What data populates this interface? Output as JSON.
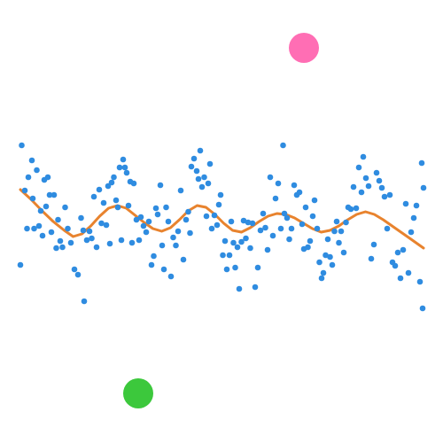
{
  "chart_data": {
    "type": "scatter",
    "title": "",
    "xlabel": "",
    "ylabel": "",
    "grid": false,
    "legend": "none",
    "xlim": [
      0,
      1
    ],
    "ylim": [
      0,
      1
    ],
    "series": [
      {
        "kind": "scatter",
        "color": "#2f8ce0",
        "points": [
          [
            0.046,
            0.402
          ],
          [
            0.049,
            0.672
          ],
          [
            0.056,
            0.57
          ],
          [
            0.061,
            0.484
          ],
          [
            0.064,
            0.6
          ],
          [
            0.072,
            0.638
          ],
          [
            0.074,
            0.552
          ],
          [
            0.077,
            0.484
          ],
          [
            0.083,
            0.616
          ],
          [
            0.088,
            0.49
          ],
          [
            0.092,
            0.524
          ],
          [
            0.096,
            0.468
          ],
          [
            0.1,
            0.594
          ],
          [
            0.104,
            0.534
          ],
          [
            0.108,
            0.6
          ],
          [
            0.112,
            0.56
          ],
          [
            0.116,
            0.476
          ],
          [
            0.122,
            0.56
          ],
          [
            0.127,
            0.44
          ],
          [
            0.131,
            0.504
          ],
          [
            0.136,
            0.456
          ],
          [
            0.141,
            0.442
          ],
          [
            0.147,
            0.532
          ],
          [
            0.153,
            0.484
          ],
          [
            0.16,
            0.452
          ],
          [
            0.168,
            0.392
          ],
          [
            0.176,
            0.38
          ],
          [
            0.183,
            0.508
          ],
          [
            0.188,
            0.48
          ],
          [
            0.19,
            0.32
          ],
          [
            0.196,
            0.458
          ],
          [
            0.202,
            0.478
          ],
          [
            0.207,
            0.462
          ],
          [
            0.212,
            0.556
          ],
          [
            0.218,
            0.442
          ],
          [
            0.224,
            0.572
          ],
          [
            0.229,
            0.496
          ],
          [
            0.234,
            0.542
          ],
          [
            0.24,
            0.492
          ],
          [
            0.244,
            0.58
          ],
          [
            0.248,
            0.45
          ],
          [
            0.252,
            0.588
          ],
          [
            0.257,
            0.6
          ],
          [
            0.262,
            0.548
          ],
          [
            0.266,
            0.532
          ],
          [
            0.27,
            0.622
          ],
          [
            0.274,
            0.458
          ],
          [
            0.278,
            0.64
          ],
          [
            0.282,
            0.622
          ],
          [
            0.286,
            0.61
          ],
          [
            0.29,
            0.536
          ],
          [
            0.294,
            0.59
          ],
          [
            0.298,
            0.452
          ],
          [
            0.302,
            0.586
          ],
          [
            0.308,
            0.504
          ],
          [
            0.314,
            0.458
          ],
          [
            0.318,
            0.51
          ],
          [
            0.324,
            0.49
          ],
          [
            0.33,
            0.476
          ],
          [
            0.336,
            0.5
          ],
          [
            0.342,
            0.402
          ],
          [
            0.347,
            0.422
          ],
          [
            0.352,
            0.53
          ],
          [
            0.356,
            0.516
          ],
          [
            0.362,
            0.582
          ],
          [
            0.366,
            0.446
          ],
          [
            0.37,
            0.392
          ],
          [
            0.375,
            0.532
          ],
          [
            0.38,
            0.5
          ],
          [
            0.386,
            0.376
          ],
          [
            0.391,
            0.464
          ],
          [
            0.397,
            0.446
          ],
          [
            0.402,
            0.478
          ],
          [
            0.408,
            0.57
          ],
          [
            0.414,
            0.414
          ],
          [
            0.42,
            0.504
          ],
          [
            0.425,
            0.522
          ],
          [
            0.429,
            0.474
          ],
          [
            0.432,
            0.624
          ],
          [
            0.438,
            0.642
          ],
          [
            0.444,
            0.614
          ],
          [
            0.448,
            0.596
          ],
          [
            0.452,
            0.66
          ],
          [
            0.456,
            0.578
          ],
          [
            0.461,
            0.6
          ],
          [
            0.466,
            0.512
          ],
          [
            0.47,
            0.586
          ],
          [
            0.474,
            0.63
          ],
          [
            0.478,
            0.484
          ],
          [
            0.484,
            0.514
          ],
          [
            0.49,
            0.492
          ],
          [
            0.494,
            0.538
          ],
          [
            0.498,
            0.56
          ],
          [
            0.503,
            0.424
          ],
          [
            0.508,
            0.456
          ],
          [
            0.512,
            0.392
          ],
          [
            0.518,
            0.424
          ],
          [
            0.522,
            0.5
          ],
          [
            0.527,
            0.452
          ],
          [
            0.531,
            0.396
          ],
          [
            0.536,
            0.442
          ],
          [
            0.54,
            0.348
          ],
          [
            0.545,
            0.454
          ],
          [
            0.55,
            0.502
          ],
          [
            0.555,
            0.462
          ],
          [
            0.56,
            0.498
          ],
          [
            0.565,
            0.44
          ],
          [
            0.57,
            0.496
          ],
          [
            0.576,
            0.352
          ],
          [
            0.582,
            0.396
          ],
          [
            0.588,
            0.48
          ],
          [
            0.594,
            0.518
          ],
          [
            0.599,
            0.486
          ],
          [
            0.604,
            0.436
          ],
          [
            0.61,
            0.6
          ],
          [
            0.616,
            0.468
          ],
          [
            0.622,
            0.552
          ],
          [
            0.628,
            0.586
          ],
          [
            0.634,
            0.484
          ],
          [
            0.639,
            0.672
          ],
          [
            0.642,
            0.518
          ],
          [
            0.648,
            0.508
          ],
          [
            0.653,
            0.46
          ],
          [
            0.658,
            0.484
          ],
          [
            0.664,
            0.582
          ],
          [
            0.67,
            0.56
          ],
          [
            0.676,
            0.566
          ],
          [
            0.682,
            0.494
          ],
          [
            0.686,
            0.438
          ],
          [
            0.69,
            0.532
          ],
          [
            0.695,
            0.442
          ],
          [
            0.7,
            0.456
          ],
          [
            0.706,
            0.512
          ],
          [
            0.71,
            0.548
          ],
          [
            0.716,
            0.484
          ],
          [
            0.721,
            0.408
          ],
          [
            0.726,
            0.372
          ],
          [
            0.73,
            0.384
          ],
          [
            0.735,
            0.424
          ],
          [
            0.74,
            0.46
          ],
          [
            0.745,
            0.42
          ],
          [
            0.75,
            0.402
          ],
          [
            0.755,
            0.478
          ],
          [
            0.76,
            0.5
          ],
          [
            0.765,
            0.452
          ],
          [
            0.77,
            0.478
          ],
          [
            0.776,
            0.43
          ],
          [
            0.781,
            0.498
          ],
          [
            0.786,
            0.532
          ],
          [
            0.792,
            0.528
          ],
          [
            0.798,
            0.578
          ],
          [
            0.804,
            0.53
          ],
          [
            0.81,
            0.622
          ],
          [
            0.816,
            0.566
          ],
          [
            0.82,
            0.646
          ],
          [
            0.826,
            0.598
          ],
          [
            0.832,
            0.58
          ],
          [
            0.838,
            0.416
          ],
          [
            0.844,
            0.448
          ],
          [
            0.85,
            0.61
          ],
          [
            0.856,
            0.592
          ],
          [
            0.862,
            0.576
          ],
          [
            0.868,
            0.556
          ],
          [
            0.874,
            0.484
          ],
          [
            0.88,
            0.56
          ],
          [
            0.886,
            0.408
          ],
          [
            0.892,
            0.4
          ],
          [
            0.898,
            0.43
          ],
          [
            0.904,
            0.372
          ],
          [
            0.91,
            0.436
          ],
          [
            0.916,
            0.54
          ],
          [
            0.922,
            0.384
          ],
          [
            0.928,
            0.476
          ],
          [
            0.934,
            0.508
          ],
          [
            0.94,
            0.536
          ],
          [
            0.948,
            0.364
          ],
          [
            0.952,
            0.632
          ],
          [
            0.954,
            0.304
          ],
          [
            0.956,
            0.576
          ]
        ]
      },
      {
        "kind": "line",
        "color": "#e8832e",
        "points": [
          [
            0.046,
            0.572
          ],
          [
            0.07,
            0.55
          ],
          [
            0.095,
            0.524
          ],
          [
            0.12,
            0.5
          ],
          [
            0.145,
            0.48
          ],
          [
            0.165,
            0.466
          ],
          [
            0.185,
            0.472
          ],
          [
            0.205,
            0.49
          ],
          [
            0.225,
            0.512
          ],
          [
            0.245,
            0.53
          ],
          [
            0.265,
            0.536
          ],
          [
            0.285,
            0.53
          ],
          [
            0.305,
            0.514
          ],
          [
            0.325,
            0.498
          ],
          [
            0.345,
            0.484
          ],
          [
            0.365,
            0.478
          ],
          [
            0.385,
            0.486
          ],
          [
            0.405,
            0.504
          ],
          [
            0.425,
            0.524
          ],
          [
            0.445,
            0.536
          ],
          [
            0.465,
            0.532
          ],
          [
            0.485,
            0.516
          ],
          [
            0.505,
            0.496
          ],
          [
            0.525,
            0.48
          ],
          [
            0.545,
            0.476
          ],
          [
            0.565,
            0.486
          ],
          [
            0.585,
            0.5
          ],
          [
            0.605,
            0.512
          ],
          [
            0.625,
            0.518
          ],
          [
            0.645,
            0.516
          ],
          [
            0.665,
            0.508
          ],
          [
            0.685,
            0.496
          ],
          [
            0.705,
            0.484
          ],
          [
            0.725,
            0.476
          ],
          [
            0.745,
            0.48
          ],
          [
            0.765,
            0.49
          ],
          [
            0.785,
            0.504
          ],
          [
            0.805,
            0.516
          ],
          [
            0.825,
            0.522
          ],
          [
            0.845,
            0.516
          ],
          [
            0.865,
            0.504
          ],
          [
            0.885,
            0.49
          ],
          [
            0.905,
            0.476
          ],
          [
            0.925,
            0.462
          ],
          [
            0.956,
            0.44
          ]
        ]
      },
      {
        "kind": "scatter",
        "color": "#ff6eb4",
        "points": [
          [
            0.686,
            0.892
          ]
        ]
      },
      {
        "kind": "scatter",
        "color": "#3cc83c",
        "points": [
          [
            0.312,
            0.112
          ]
        ]
      }
    ]
  }
}
